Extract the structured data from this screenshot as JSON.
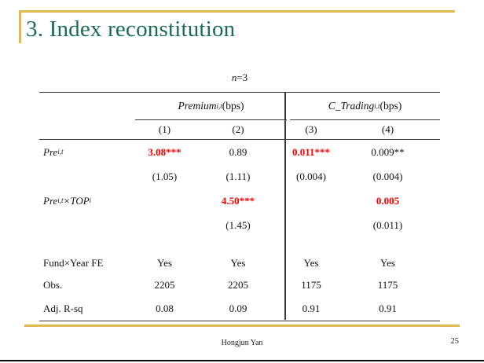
{
  "slide": {
    "title": "3. Index reconstitution",
    "footer_author": "Hongjun Yan",
    "page_number": "25",
    "colors": {
      "accent_gold": "#e0b84f",
      "title_green": "#17704d",
      "highlight_red": "#fe0000"
    }
  },
  "table": {
    "caption_var": "n",
    "caption_rest": "=3",
    "groups": [
      {
        "name": "Premium",
        "sub": "i,t",
        "unit": " (bps)"
      },
      {
        "name": "C_Trading",
        "sub": "i,t",
        "unit": " (bps)"
      }
    ],
    "col_numbers": [
      "(1)",
      "(2)",
      "(3)",
      "(4)"
    ],
    "coef_rows": [
      {
        "label": {
          "main": "Pre",
          "sub": "i,t",
          "mid": "",
          "sub2": ""
        },
        "coefs": [
          "3.08***",
          "0.89",
          "0.011***",
          "0.009**"
        ],
        "coef_red": [
          true,
          false,
          true,
          false
        ],
        "ses": [
          "(1.05)",
          "(1.11)",
          "(0.004)",
          "(0.004)"
        ]
      },
      {
        "label": {
          "main": "Pre",
          "sub": "i,t",
          "mid": "×TOP",
          "sub2": "i"
        },
        "coefs": [
          "",
          "4.50***",
          "",
          "0.005"
        ],
        "coef_red": [
          false,
          true,
          false,
          true
        ],
        "ses": [
          "",
          "(1.45)",
          "",
          "(0.011)"
        ]
      }
    ],
    "stat_rows": [
      {
        "label": "Fund×Year FE",
        "values": [
          "Yes",
          "Yes",
          "Yes",
          "Yes"
        ]
      },
      {
        "label": "Obs.",
        "values": [
          "2205",
          "2205",
          "1175",
          "1175"
        ]
      },
      {
        "label": "Adj. R-sq",
        "values": [
          "0.08",
          "0.09",
          "0.91",
          "0.91"
        ]
      }
    ]
  },
  "chart_data": {
    "type": "table",
    "title": "n=3",
    "column_groups": [
      "Premium_i,t (bps)",
      "Premium_i,t (bps)",
      "C_Trading_i,t (bps)",
      "C_Trading_i,t (bps)"
    ],
    "columns": [
      "(1)",
      "(2)",
      "(3)",
      "(4)"
    ],
    "rows": [
      {
        "label": "Pre_i,t",
        "values": [
          "3.08***",
          "0.89",
          "0.011***",
          "0.009**"
        ]
      },
      {
        "label": "Pre_i,t (se)",
        "values": [
          "(1.05)",
          "(1.11)",
          "(0.004)",
          "(0.004)"
        ]
      },
      {
        "label": "Pre_i,t×TOP_i",
        "values": [
          "",
          "4.50***",
          "",
          "0.005"
        ]
      },
      {
        "label": "Pre_i,t×TOP_i (se)",
        "values": [
          "",
          "(1.45)",
          "",
          "(0.011)"
        ]
      },
      {
        "label": "Fund×Year FE",
        "values": [
          "Yes",
          "Yes",
          "Yes",
          "Yes"
        ]
      },
      {
        "label": "Obs.",
        "values": [
          "2205",
          "2205",
          "1175",
          "1175"
        ]
      },
      {
        "label": "Adj. R-sq",
        "values": [
          "0.08",
          "0.09",
          "0.91",
          "0.91"
        ]
      }
    ]
  }
}
